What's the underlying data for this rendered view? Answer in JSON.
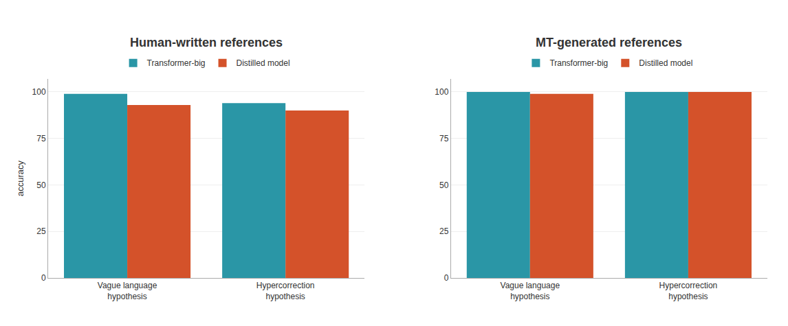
{
  "chart_data": [
    {
      "type": "bar",
      "title": "Human-written references",
      "categories": [
        "Vague language\nhypothesis",
        "Hypercorrection\nhypothesis"
      ],
      "series": [
        {
          "name": "Transformer-big",
          "color": "#2A96A6",
          "values": [
            99,
            94
          ]
        },
        {
          "name": "Distilled model",
          "color": "#D4522A",
          "values": [
            93,
            90
          ]
        }
      ],
      "ylabel": "accuracy",
      "ylim": [
        0,
        107
      ],
      "yticks": [
        0,
        25,
        50,
        75,
        100
      ],
      "grid": true,
      "legend": "upper center"
    },
    {
      "type": "bar",
      "title": "MT-generated references",
      "categories": [
        "Vague language\nhypothesis",
        "Hypercorrection\nhypothesis"
      ],
      "series": [
        {
          "name": "Transformer-big",
          "color": "#2A96A6",
          "values": [
            100,
            100
          ]
        },
        {
          "name": "Distilled model",
          "color": "#D4522A",
          "values": [
            99,
            100
          ]
        }
      ],
      "ylim": [
        0,
        107
      ],
      "yticks": [
        0,
        25,
        50,
        75,
        100
      ],
      "grid": true,
      "legend": "upper center"
    }
  ]
}
